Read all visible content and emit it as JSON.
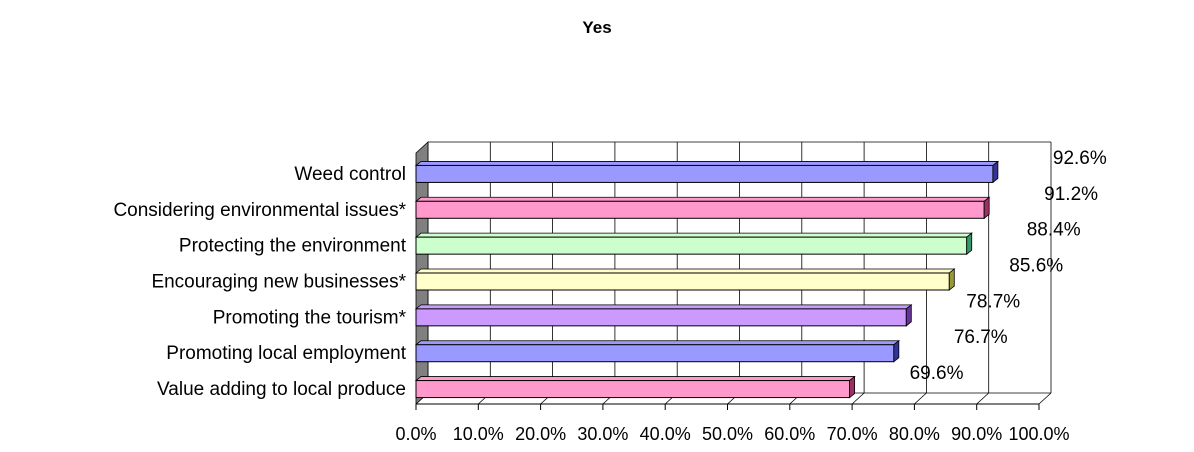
{
  "chart_data": {
    "type": "bar",
    "orientation": "horizontal",
    "title": "Yes",
    "xlabel": "",
    "ylabel": "",
    "categories": [
      "Weed control",
      "Considering environmental issues*",
      "Protecting the environment",
      "Encouraging new businesses*",
      "Promoting the tourism*",
      "Promoting local employment",
      "Value adding to local produce"
    ],
    "values": [
      92.6,
      91.2,
      88.4,
      85.6,
      78.7,
      76.7,
      69.6
    ],
    "data_labels": [
      "92.6%",
      "91.2%",
      "88.4%",
      "85.6%",
      "78.7%",
      "76.7%",
      "69.6%"
    ],
    "xlim": [
      0,
      100
    ],
    "x_ticks": [
      "0.0%",
      "10.0%",
      "20.0%",
      "30.0%",
      "40.0%",
      "50.0%",
      "60.0%",
      "70.0%",
      "80.0%",
      "90.0%",
      "100.0%"
    ],
    "grid": true,
    "legend": "none",
    "bar_colors": [
      "#9999ff",
      "#ff99cc",
      "#ccffcc",
      "#ffffcc",
      "#cc99ff",
      "#9999ff",
      "#ff99cc"
    ],
    "bar_side_colors": [
      "#333399",
      "#993366",
      "#339966",
      "#999933",
      "#663399",
      "#333399",
      "#993366"
    ],
    "floor_color": "#808080"
  }
}
